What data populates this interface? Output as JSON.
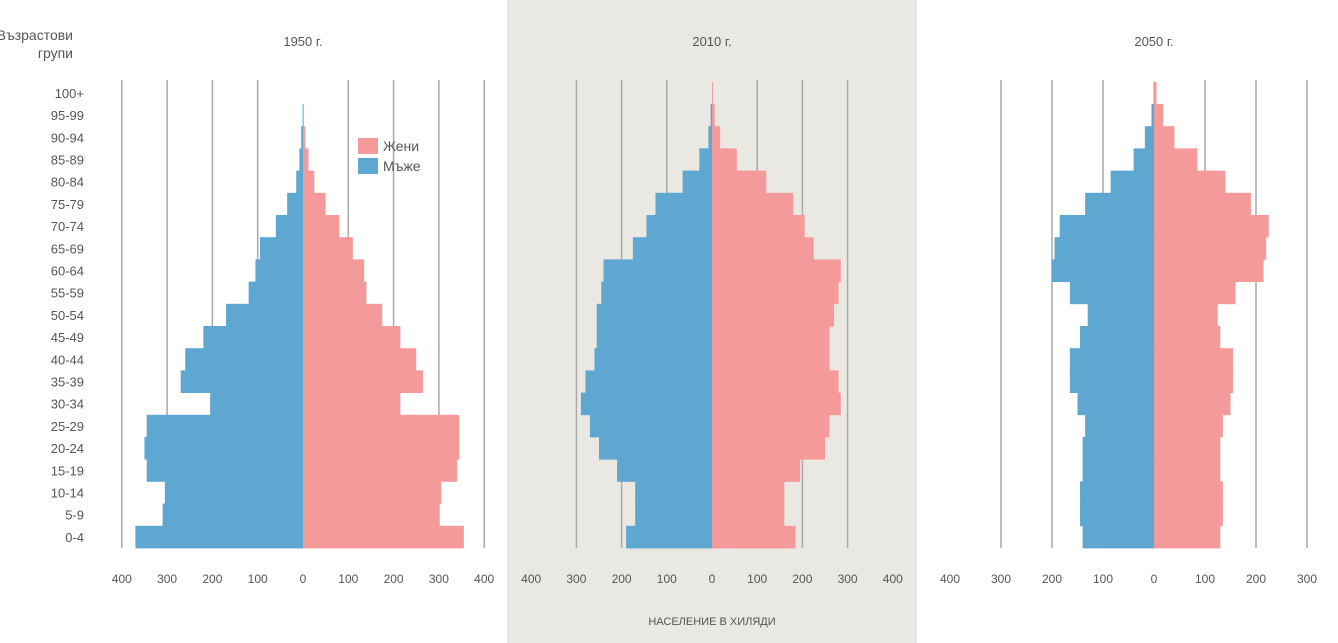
{
  "y_axis_title_line1": "Възрастови",
  "y_axis_title_line2": "групи",
  "x_axis_title": "НАСЕЛЕНИЕ В ХИЛЯДИ",
  "legend": [
    {
      "label": "Жени",
      "color": "#f59a9a"
    },
    {
      "label": "Мъже",
      "color": "#5ea7d1"
    }
  ],
  "colors": {
    "male": "#5ea7d1",
    "female": "#f59a9a",
    "panel_bg": "#eae8e3",
    "grid": "#a9a9a9",
    "text": "#555555"
  },
  "chart_data": {
    "type": "bar",
    "orientation": "horizontal population pyramid",
    "categories": [
      "0-4",
      "5-9",
      "10-14",
      "15-19",
      "20-24",
      "25-29",
      "30-34",
      "35-39",
      "40-44",
      "45-49",
      "50-54",
      "55-59",
      "60-64",
      "65-69",
      "70-74",
      "75-79",
      "80-84",
      "85-89",
      "90-94",
      "95-99",
      "100+"
    ],
    "xlabel": "НАСЕЛЕНИЕ В ХИЛЯДИ",
    "ylabel": "Възрастови групи",
    "grid": true,
    "panels": [
      {
        "title": "1950 г.",
        "xlim": [
          -400,
          400
        ],
        "ticks": [
          -400,
          -300,
          -200,
          -100,
          0,
          100,
          200,
          300,
          400
        ],
        "tick_labels": [
          "400",
          "300",
          "200",
          "100",
          "0",
          "100",
          "200",
          "300",
          "400"
        ],
        "series": [
          {
            "name": "Мъже",
            "values": [
              370,
              310,
              305,
              345,
              350,
              345,
              205,
              270,
              260,
              220,
              170,
              120,
              105,
              95,
              60,
              35,
              15,
              8,
              4,
              1,
              0
            ]
          },
          {
            "name": "Жени",
            "values": [
              355,
              300,
              305,
              340,
              345,
              345,
              215,
              265,
              250,
              215,
              175,
              140,
              135,
              110,
              80,
              50,
              25,
              12,
              5,
              2,
              0
            ]
          }
        ]
      },
      {
        "title": "2010 г.",
        "xlim": [
          -400,
          400
        ],
        "ticks": [
          -400,
          -300,
          -200,
          -100,
          0,
          100,
          200,
          300,
          400
        ],
        "tick_labels": [
          "400",
          "300",
          "200",
          "100",
          "0",
          "100",
          "200",
          "300",
          "400"
        ],
        "series": [
          {
            "name": "Мъже",
            "values": [
              190,
              170,
              170,
              210,
              250,
              270,
              290,
              280,
              260,
              255,
              255,
              245,
              240,
              175,
              145,
              125,
              65,
              28,
              8,
              3,
              0
            ]
          },
          {
            "name": "Жени",
            "values": [
              185,
              160,
              160,
              195,
              250,
              260,
              285,
              280,
              260,
              260,
              270,
              280,
              285,
              225,
              205,
              180,
              120,
              55,
              18,
              6,
              2
            ]
          }
        ]
      },
      {
        "title": "2050 г.",
        "xlim": [
          -400,
          300
        ],
        "ticks": [
          -400,
          -300,
          -200,
          -100,
          0,
          100,
          200,
          300
        ],
        "tick_labels": [
          "400",
          "300",
          "200",
          "100",
          "0",
          "100",
          "200",
          "300"
        ],
        "series": [
          {
            "name": "Мъже",
            "values": [
              140,
              145,
              145,
              140,
              140,
              135,
              150,
              165,
              165,
              145,
              130,
              165,
              200,
              195,
              185,
              135,
              85,
              40,
              18,
              5,
              1
            ]
          },
          {
            "name": "Жени",
            "values": [
              130,
              135,
              135,
              130,
              130,
              135,
              150,
              155,
              155,
              130,
              125,
              160,
              215,
              220,
              225,
              190,
              140,
              85,
              40,
              18,
              5
            ]
          }
        ]
      }
    ]
  }
}
